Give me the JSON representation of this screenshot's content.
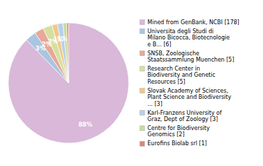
{
  "chart_data": {
    "type": "pie",
    "categories": [
      "Mined from GenBank, NCBI [178]",
      "Universita degli Studi di\nMilano Bicocca, Biotecnologie\ne B... [6]",
      "SNSB, Zoologische\nStaatssammlung Muenchen [5]",
      "Research Center in\nBiodiversity and Genetic\nResources [5]",
      "Slovak Academy of Sciences,\nPlant Science and Biodiversity\n... [3]",
      "Karl-Franzens University of\nGraz, Dept of Zoology [3]",
      "Centre for Biodiversity\nGenomics [2]",
      "Eurofins Biolab srl [1]"
    ],
    "values": [
      87.68,
      2.96,
      2.46,
      2.46,
      1.48,
      1.48,
      0.99,
      0.49
    ],
    "value_labels": [
      "88%",
      "3%",
      "2%",
      "2%",
      "1%",
      "1%",
      null,
      null
    ],
    "data_labels": true,
    "colors": [
      "#d9b8d9",
      "#aac5e0",
      "#e8a898",
      "#d4e0a0",
      "#f0c888",
      "#b8d0e8",
      "#c8dca0",
      "#d88878"
    ],
    "legend": "right"
  }
}
